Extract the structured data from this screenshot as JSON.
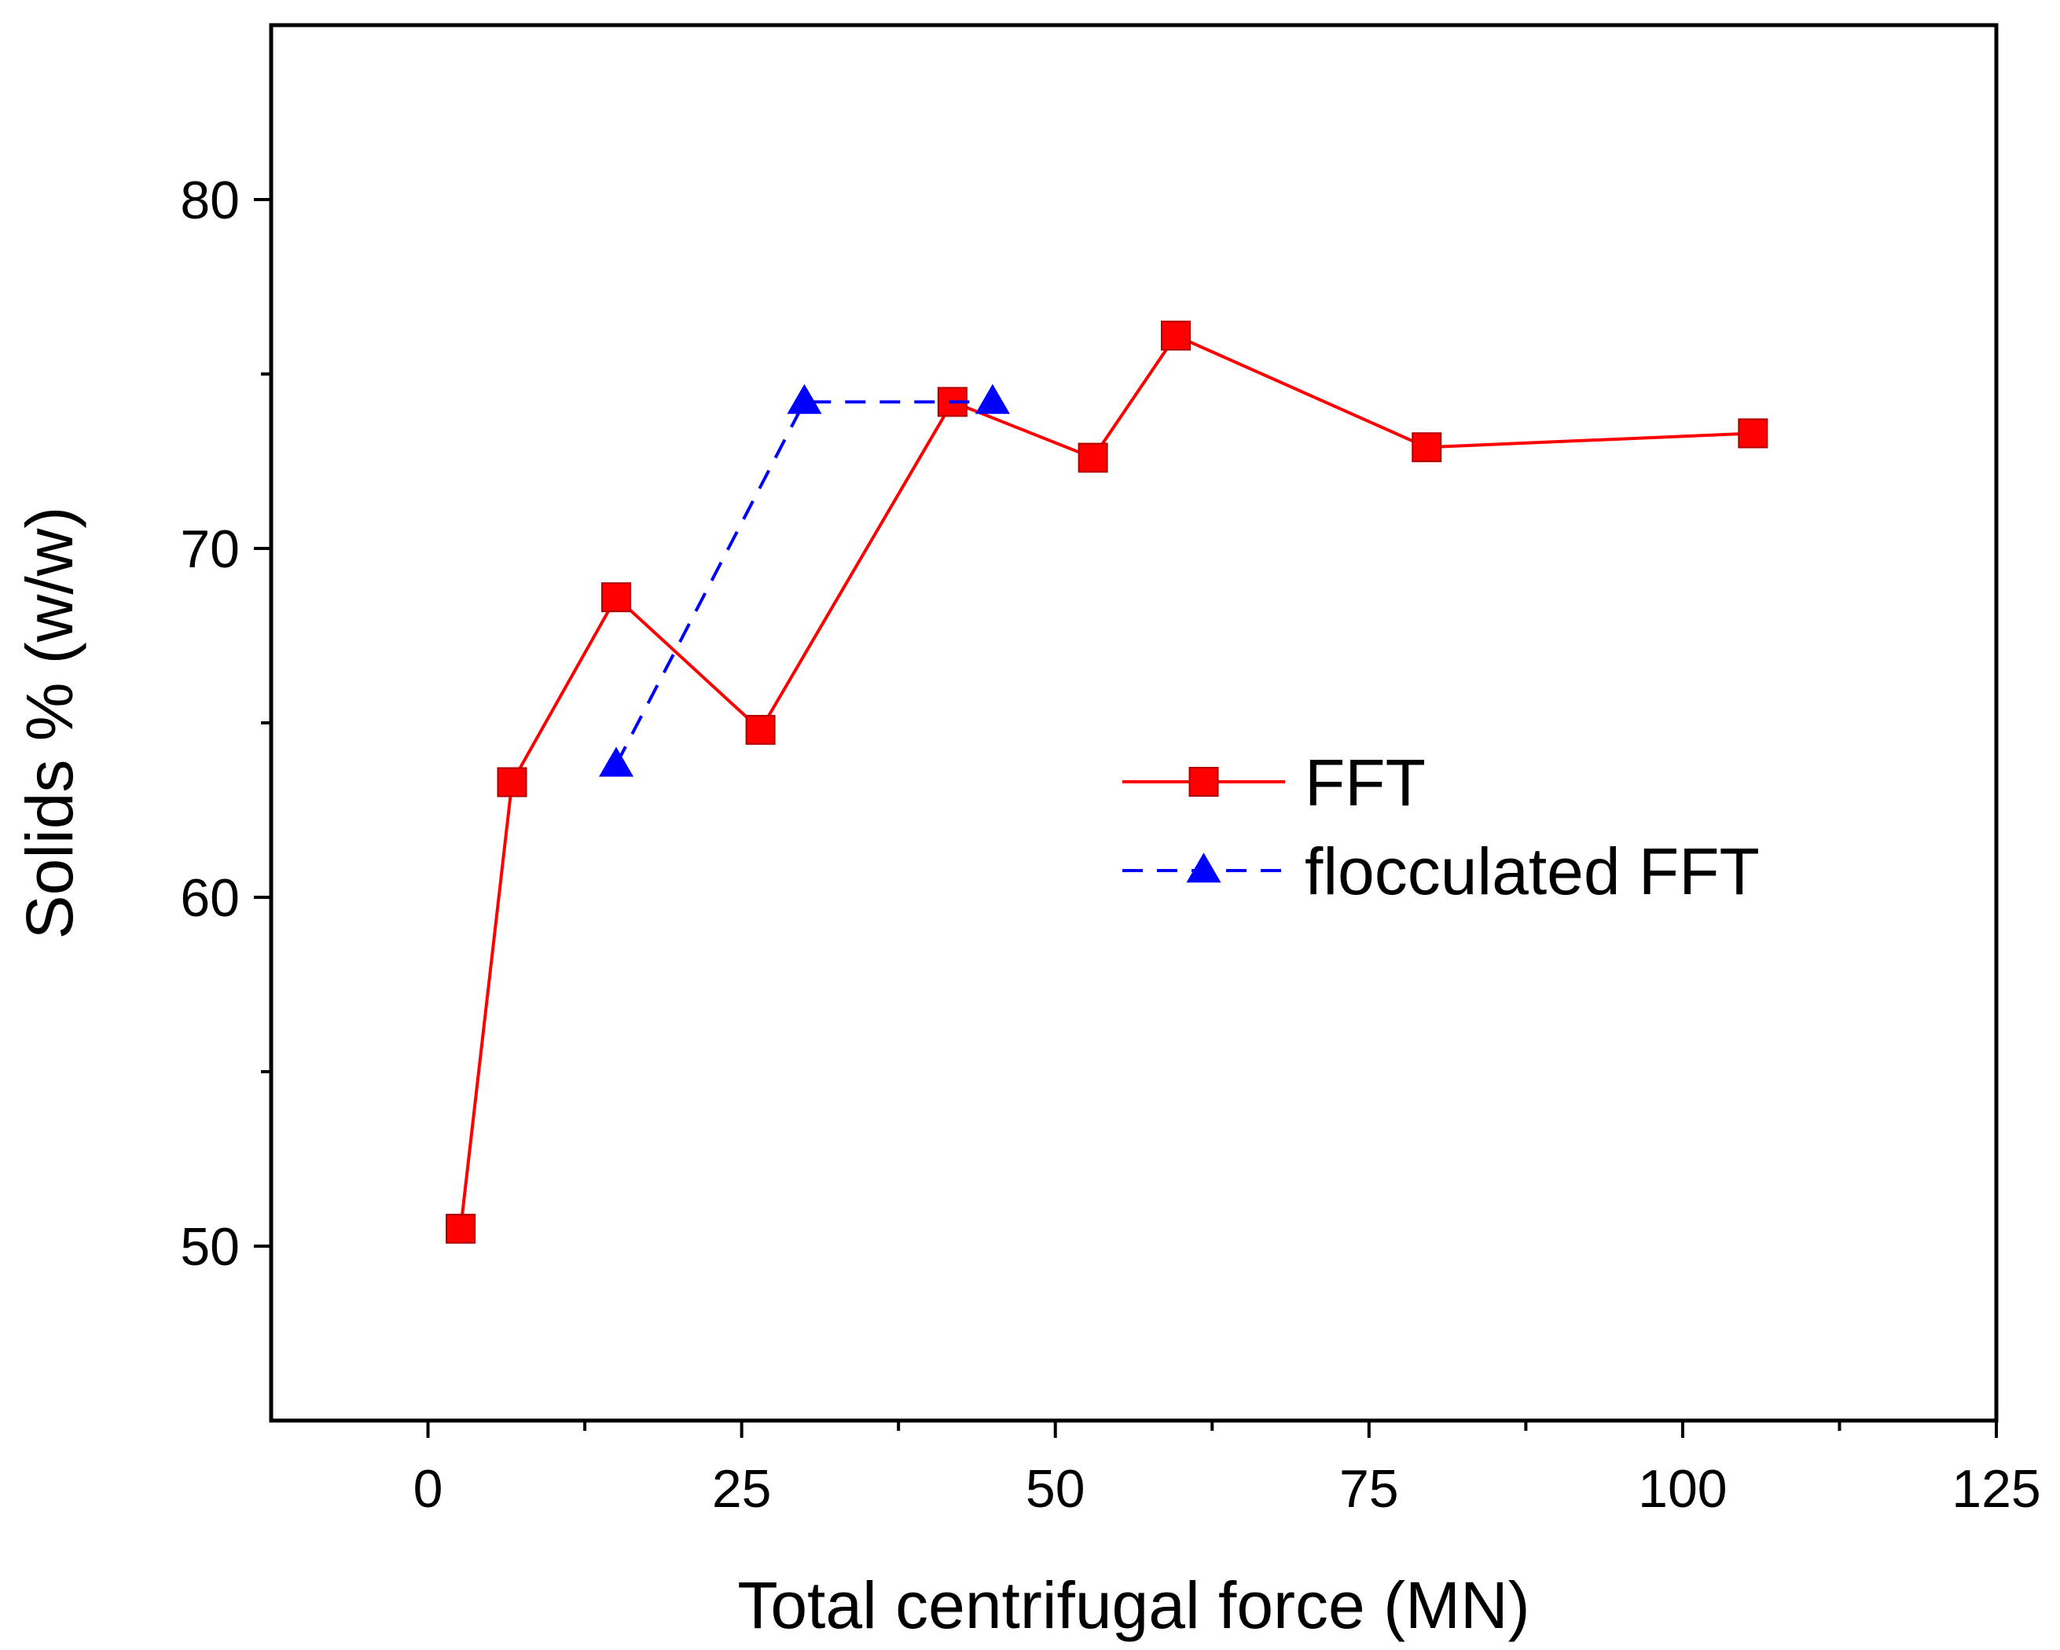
{
  "chart_data": {
    "type": "line",
    "title": "",
    "xlabel": "Total centrifugal force (MN)",
    "ylabel": "Solids % (w/w)",
    "xlim": [
      -12.5,
      125
    ],
    "ylim": [
      45,
      85
    ],
    "xticks": [
      0,
      25,
      50,
      75,
      100,
      125
    ],
    "xtick_labels": [
      "0",
      "25",
      "50",
      "75",
      "100",
      "125"
    ],
    "xminor": [
      12.5,
      37.5,
      62.5,
      87.5,
      112.5
    ],
    "yticks": [
      50,
      60,
      70,
      80
    ],
    "ytick_labels": [
      "50",
      "60",
      "70",
      "80"
    ],
    "yminor": [
      55,
      65,
      75
    ],
    "grid": false,
    "legend_position": "center-right",
    "series": [
      {
        "name": "FFT",
        "color": "#ff0000",
        "marker": "square",
        "line_style": "solid",
        "x": [
          2.6,
          6.7,
          15.0,
          26.5,
          41.8,
          53.0,
          59.6,
          79.6,
          105.6
        ],
        "y": [
          50.5,
          63.3,
          68.6,
          64.8,
          74.2,
          72.6,
          76.1,
          72.9,
          73.3
        ]
      },
      {
        "name": "flocculated FFT",
        "color": "#0000ff",
        "marker": "triangle",
        "line_style": "dashed",
        "x": [
          15.0,
          30.0,
          45.0
        ],
        "y": [
          63.8,
          74.2,
          74.2
        ]
      }
    ]
  }
}
